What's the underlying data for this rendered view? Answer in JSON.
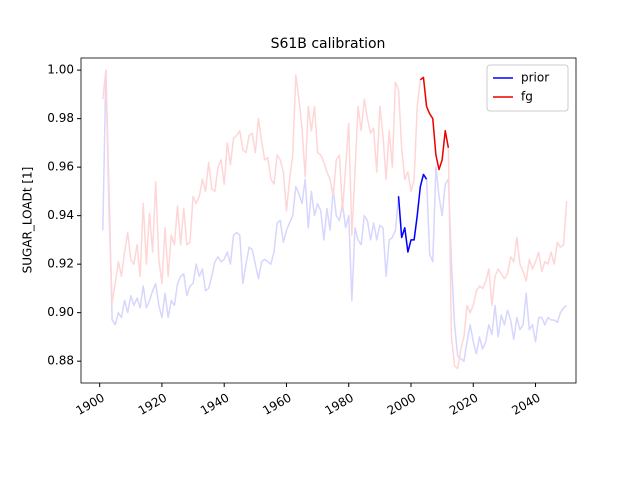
{
  "chart_data": {
    "type": "line",
    "title": "S61B calibration",
    "y_label": "SUGAR_LOADt [1]",
    "x": [
      1901,
      1902,
      1903,
      1904,
      1905,
      1906,
      1907,
      1908,
      1909,
      1910,
      1911,
      1912,
      1913,
      1914,
      1915,
      1916,
      1917,
      1918,
      1919,
      1920,
      1921,
      1922,
      1923,
      1924,
      1925,
      1926,
      1927,
      1928,
      1929,
      1930,
      1931,
      1932,
      1933,
      1934,
      1935,
      1936,
      1937,
      1938,
      1939,
      1940,
      1941,
      1942,
      1943,
      1944,
      1945,
      1946,
      1947,
      1948,
      1949,
      1950,
      1951,
      1952,
      1953,
      1954,
      1955,
      1956,
      1957,
      1958,
      1959,
      1960,
      1961,
      1962,
      1963,
      1964,
      1965,
      1966,
      1967,
      1968,
      1969,
      1970,
      1971,
      1972,
      1973,
      1974,
      1975,
      1976,
      1977,
      1978,
      1979,
      1980,
      1981,
      1982,
      1983,
      1984,
      1985,
      1986,
      1987,
      1988,
      1989,
      1990,
      1991,
      1992,
      1993,
      1994,
      1995,
      1996,
      1997,
      1998,
      1999,
      2000,
      2001,
      2002,
      2003,
      2004,
      2005,
      2006,
      2007,
      2008,
      2009,
      2010,
      2011,
      2012,
      2013,
      2014,
      2015,
      2016,
      2017,
      2018,
      2019,
      2020,
      2021,
      2022,
      2023,
      2024,
      2025,
      2026,
      2027,
      2028,
      2029,
      2030,
      2031,
      2032,
      2033,
      2034,
      2035,
      2036,
      2037,
      2038,
      2039,
      2040,
      2041,
      2042,
      2043,
      2044,
      2045,
      2046,
      2047,
      2048,
      2049,
      2050
    ],
    "series": [
      {
        "color": "#d6d6ff",
        "values": [
          0.934,
          1.0,
          0.95,
          0.897,
          0.895,
          0.9,
          0.898,
          0.905,
          0.9,
          0.907,
          0.903,
          0.906,
          0.902,
          0.911,
          0.902,
          0.905,
          0.909,
          0.912,
          0.903,
          0.898,
          0.908,
          0.898,
          0.905,
          0.903,
          0.912,
          0.915,
          0.916,
          0.907,
          0.911,
          0.912,
          0.92,
          0.915,
          0.918,
          0.909,
          0.91,
          0.915,
          0.921,
          0.923,
          0.921,
          0.922,
          0.925,
          0.92,
          0.932,
          0.933,
          0.932,
          0.912,
          0.92,
          0.927,
          0.926,
          0.92,
          0.914,
          0.921,
          0.922,
          0.921,
          0.92,
          0.925,
          0.937,
          0.938,
          0.929,
          0.934,
          0.937,
          0.94,
          0.952,
          0.949,
          0.945,
          0.955,
          0.935,
          0.95,
          0.94,
          0.945,
          0.942,
          0.93,
          0.943,
          0.934,
          0.951,
          0.94,
          0.938,
          0.945,
          0.935,
          0.94,
          0.905,
          0.935,
          0.93,
          0.928,
          0.94,
          0.938,
          0.93,
          0.937,
          0.93,
          0.936,
          0.935,
          0.915,
          0.93,
          0.931,
          0.934,
          0.948,
          0.931,
          0.935,
          0.925,
          0.93,
          0.93,
          0.94,
          0.952,
          0.957,
          0.955,
          0.924,
          0.921,
          0.96,
          0.948,
          0.94,
          0.953,
          0.955,
          0.92,
          0.895,
          0.882,
          0.881,
          0.88,
          0.888,
          0.895,
          0.888,
          0.883,
          0.89,
          0.885,
          0.888,
          0.895,
          0.891,
          0.903,
          0.89,
          0.899,
          0.895,
          0.901,
          0.897,
          0.889,
          0.898,
          0.893,
          0.895,
          0.908,
          0.893,
          0.895,
          0.888,
          0.898,
          0.898,
          0.895,
          0.898,
          0.897,
          0.897,
          0.896,
          0.9,
          0.902,
          0.903
        ]
      },
      {
        "color": "#ffd6d6",
        "values": [
          0.988,
          1.0,
          0.94,
          0.904,
          0.912,
          0.921,
          0.915,
          0.925,
          0.933,
          0.922,
          0.92,
          0.928,
          0.915,
          0.945,
          0.92,
          0.941,
          0.925,
          0.954,
          0.922,
          0.912,
          0.935,
          0.915,
          0.932,
          0.928,
          0.944,
          0.928,
          0.943,
          0.928,
          0.929,
          0.948,
          0.945,
          0.948,
          0.955,
          0.95,
          0.962,
          0.951,
          0.95,
          0.96,
          0.963,
          0.953,
          0.97,
          0.961,
          0.972,
          0.973,
          0.975,
          0.967,
          0.966,
          0.973,
          0.974,
          0.966,
          0.98,
          0.971,
          0.963,
          0.964,
          0.955,
          0.953,
          0.965,
          0.963,
          0.958,
          0.942,
          0.955,
          0.965,
          0.998,
          0.988,
          0.976,
          0.956,
          0.985,
          0.975,
          0.985,
          0.966,
          0.965,
          0.962,
          0.958,
          0.955,
          0.948,
          0.963,
          0.965,
          0.942,
          0.96,
          0.978,
          0.932,
          0.958,
          0.985,
          0.975,
          0.988,
          0.98,
          0.974,
          0.976,
          0.958,
          0.985,
          0.973,
          0.955,
          0.975,
          0.96,
          0.995,
          0.992,
          0.968,
          0.955,
          0.958,
          0.95,
          0.955,
          0.985,
          0.996,
          0.997,
          0.985,
          0.982,
          0.98,
          0.965,
          0.959,
          0.963,
          0.975,
          0.968,
          0.89,
          0.878,
          0.877,
          0.885,
          0.89,
          0.903,
          0.9,
          0.903,
          0.909,
          0.911,
          0.91,
          0.913,
          0.918,
          0.903,
          0.915,
          0.918,
          0.916,
          0.914,
          0.916,
          0.923,
          0.921,
          0.931,
          0.92,
          0.917,
          0.913,
          0.922,
          0.918,
          0.921,
          0.925,
          0.917,
          0.921,
          0.92,
          0.925,
          0.92,
          0.929,
          0.927,
          0.928,
          0.946
        ]
      },
      {
        "name": "prior",
        "color": "#0000ff",
        "x": [
          1996,
          1997,
          1998,
          1999,
          2000,
          2001,
          2002,
          2003,
          2004,
          2005
        ],
        "values": [
          0.948,
          0.931,
          0.935,
          0.925,
          0.93,
          0.93,
          0.94,
          0.952,
          0.957,
          0.955
        ]
      },
      {
        "name": "fg",
        "color": "#ee0000",
        "x": [
          2003,
          2004,
          2005,
          2006,
          2007,
          2008,
          2009,
          2010,
          2011,
          2012
        ],
        "values": [
          0.996,
          0.997,
          0.985,
          0.982,
          0.98,
          0.965,
          0.959,
          0.963,
          0.975,
          0.968
        ]
      }
    ],
    "xlim": [
      1894,
      2053
    ],
    "xticks": [
      1900,
      1920,
      1940,
      1960,
      1980,
      2000,
      2020,
      2040
    ],
    "ylim": [
      0.871,
      1.005
    ],
    "yticks": [
      0.88,
      {
        "value": 0.9,
        "label": "0.90"
      },
      0.92,
      0.94,
      0.96,
      0.98,
      {
        "value": 1,
        "label": "1.00"
      }
    ],
    "legend": "upper right"
  }
}
